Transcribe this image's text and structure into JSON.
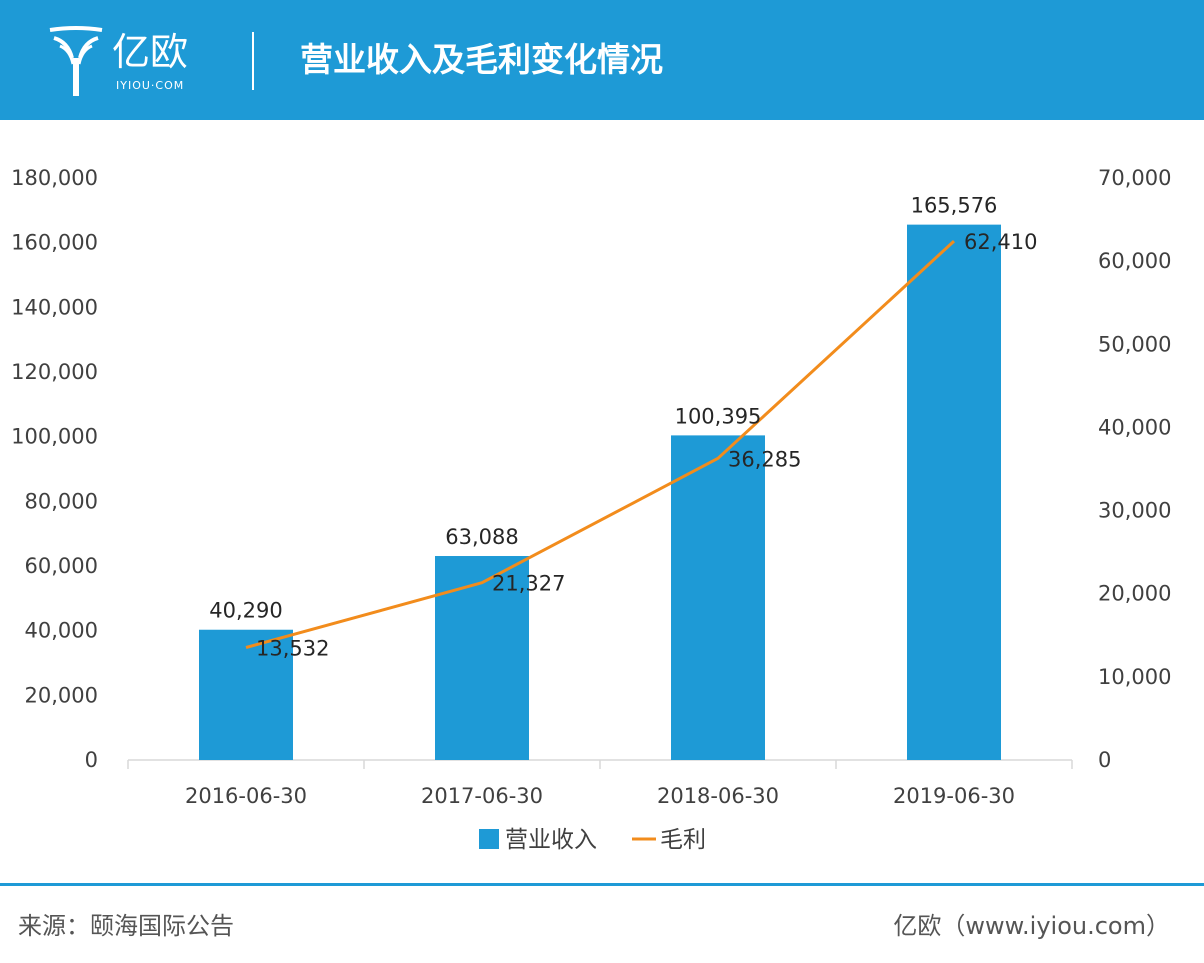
{
  "header": {
    "logo_text": "亿欧",
    "logo_domain": "IYIOU·COM",
    "title": "营业收入及毛利变化情况",
    "accent_color": "#1e9ad6"
  },
  "chart_data": {
    "type": "bar",
    "title": "营业收入及毛利变化情况",
    "categories": [
      "2016-06-30",
      "2017-06-30",
      "2018-06-30",
      "2019-06-30"
    ],
    "series": [
      {
        "name": "营业收入",
        "type": "bar",
        "axis": "left",
        "color": "#1e9ad6",
        "values": [
          40290,
          63088,
          100395,
          165576
        ],
        "labels": [
          "40,290",
          "63,088",
          "100,395",
          "165,576"
        ]
      },
      {
        "name": "毛利",
        "type": "line",
        "axis": "right",
        "color": "#f28c1c",
        "values": [
          13532,
          21327,
          36285,
          62410
        ],
        "labels": [
          "13,532",
          "21,327",
          "36,285",
          "62,410"
        ]
      }
    ],
    "ylim_left": [
      0,
      180000
    ],
    "ylim_right": [
      0,
      70000
    ],
    "left_ticks": [
      "0",
      "20,000",
      "40,000",
      "60,000",
      "80,000",
      "100,000",
      "120,000",
      "140,000",
      "160,000",
      "180,000"
    ],
    "right_ticks": [
      "0",
      "10,000",
      "20,000",
      "30,000",
      "40,000",
      "50,000",
      "60,000",
      "70,000"
    ],
    "grid": false,
    "legend_position": "bottom"
  },
  "footer": {
    "source": "来源：颐海国际公告",
    "brand": "亿欧（www.iyiou.com）"
  }
}
